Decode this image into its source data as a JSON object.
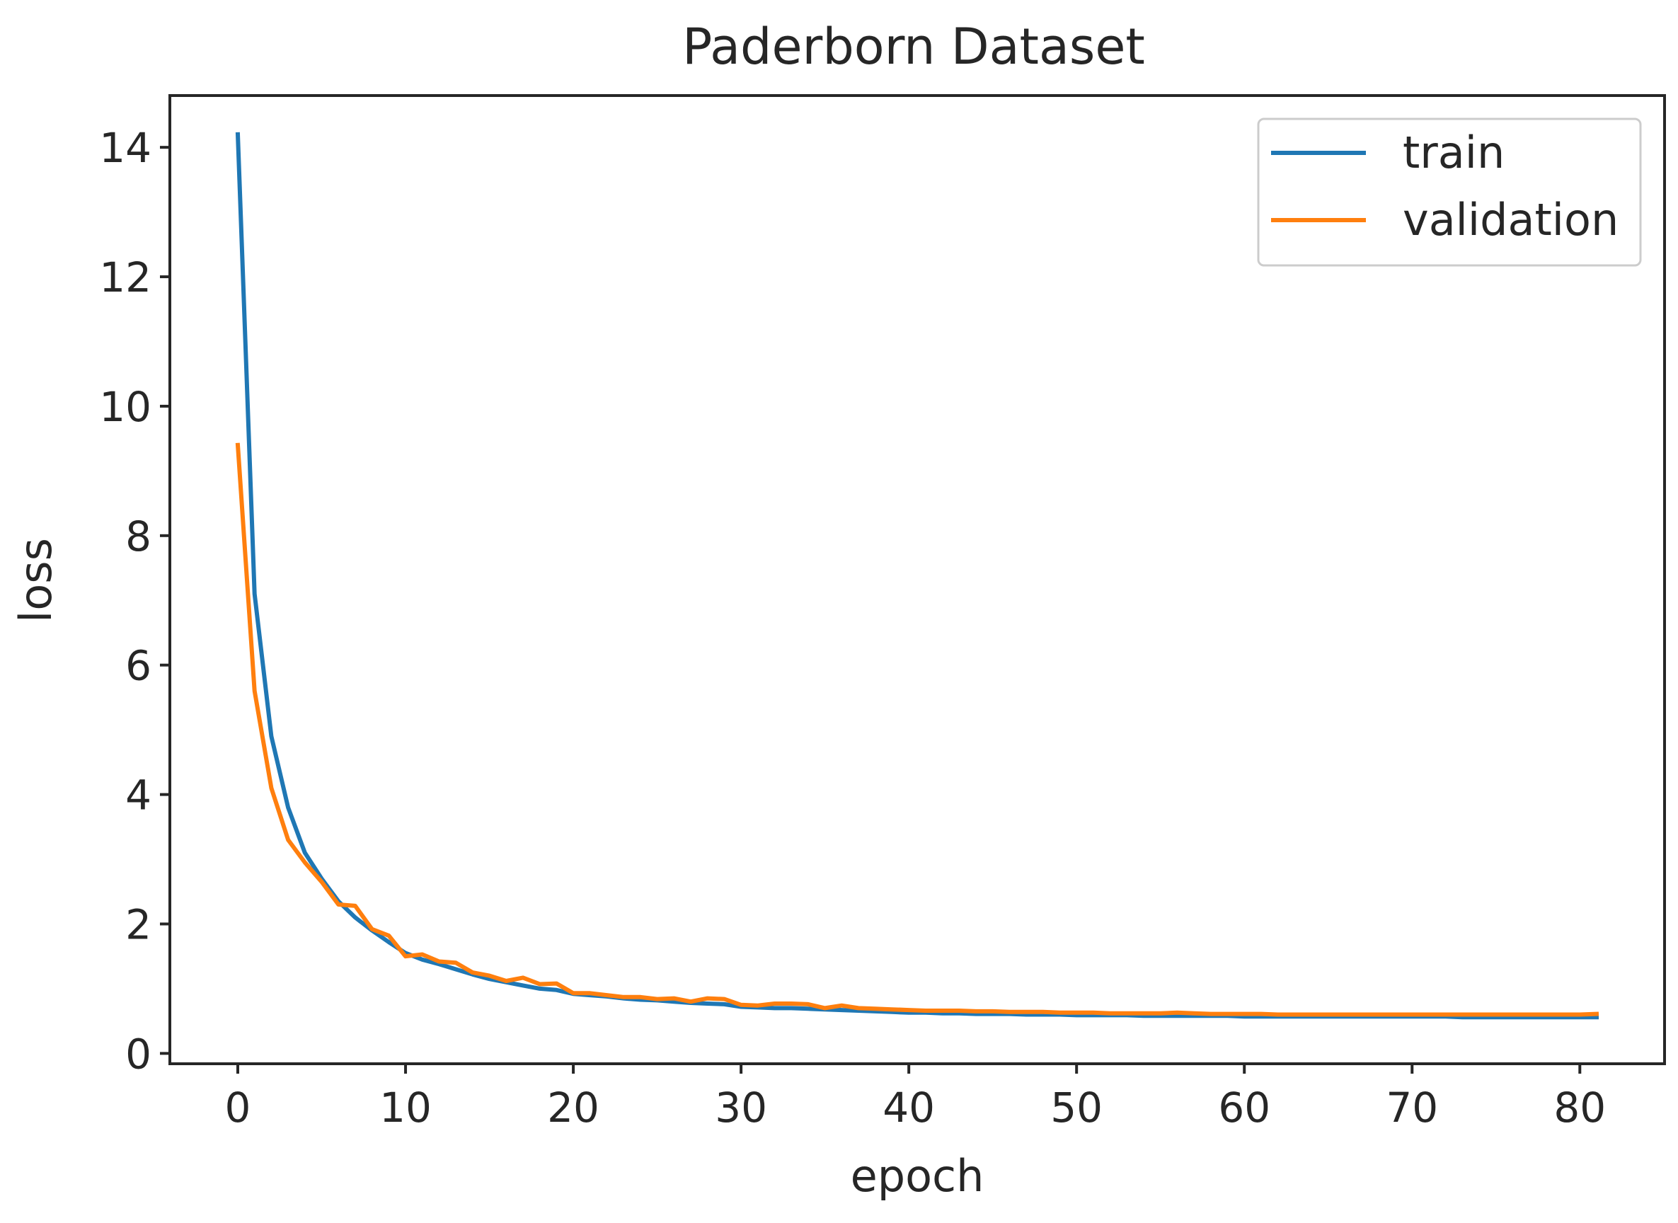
{
  "chart_data": {
    "type": "line",
    "title": "Paderborn Dataset",
    "xlabel": "epoch",
    "ylabel": "loss",
    "xlim": [
      -4.05,
      85.05
    ],
    "ylim": [
      -0.16,
      14.8
    ],
    "xticks": [
      0,
      10,
      20,
      30,
      40,
      50,
      60,
      70,
      80
    ],
    "yticks": [
      0,
      2,
      4,
      6,
      8,
      10,
      12,
      14
    ],
    "grid": false,
    "legend": "top-right",
    "x": [
      0,
      1,
      2,
      3,
      4,
      5,
      6,
      7,
      8,
      9,
      10,
      11,
      12,
      13,
      14,
      15,
      16,
      17,
      18,
      19,
      20,
      21,
      22,
      23,
      24,
      25,
      26,
      27,
      28,
      29,
      30,
      31,
      32,
      33,
      34,
      35,
      36,
      37,
      38,
      39,
      40,
      41,
      42,
      43,
      44,
      45,
      46,
      47,
      48,
      49,
      50,
      51,
      52,
      53,
      54,
      55,
      56,
      57,
      58,
      59,
      60,
      61,
      62,
      63,
      64,
      65,
      66,
      67,
      68,
      69,
      70,
      71,
      72,
      73,
      74,
      75,
      76,
      77,
      78,
      79,
      80,
      81
    ],
    "series": [
      {
        "name": "train",
        "color": "#1f77b4",
        "values": [
          14.2,
          7.1,
          4.9,
          3.8,
          3.1,
          2.7,
          2.35,
          2.1,
          1.9,
          1.72,
          1.55,
          1.45,
          1.38,
          1.3,
          1.22,
          1.15,
          1.1,
          1.05,
          1.0,
          0.98,
          0.92,
          0.9,
          0.88,
          0.85,
          0.83,
          0.82,
          0.8,
          0.78,
          0.77,
          0.76,
          0.72,
          0.71,
          0.7,
          0.7,
          0.69,
          0.68,
          0.67,
          0.66,
          0.65,
          0.64,
          0.63,
          0.63,
          0.62,
          0.62,
          0.61,
          0.61,
          0.61,
          0.6,
          0.6,
          0.6,
          0.59,
          0.59,
          0.59,
          0.59,
          0.58,
          0.58,
          0.58,
          0.58,
          0.58,
          0.58,
          0.57,
          0.57,
          0.57,
          0.57,
          0.57,
          0.57,
          0.57,
          0.57,
          0.57,
          0.57,
          0.57,
          0.57,
          0.57,
          0.56,
          0.56,
          0.56,
          0.56,
          0.56,
          0.56,
          0.56,
          0.56,
          0.56
        ]
      },
      {
        "name": "validation",
        "color": "#ff7f0e",
        "values": [
          9.4,
          5.6,
          4.1,
          3.3,
          2.95,
          2.65,
          2.3,
          2.28,
          1.92,
          1.82,
          1.5,
          1.53,
          1.42,
          1.4,
          1.25,
          1.2,
          1.12,
          1.17,
          1.07,
          1.08,
          0.93,
          0.93,
          0.9,
          0.87,
          0.87,
          0.84,
          0.85,
          0.8,
          0.85,
          0.84,
          0.75,
          0.74,
          0.77,
          0.77,
          0.76,
          0.7,
          0.74,
          0.7,
          0.69,
          0.68,
          0.67,
          0.66,
          0.66,
          0.66,
          0.65,
          0.65,
          0.64,
          0.64,
          0.64,
          0.63,
          0.63,
          0.63,
          0.62,
          0.62,
          0.62,
          0.62,
          0.63,
          0.62,
          0.61,
          0.61,
          0.61,
          0.61,
          0.6,
          0.6,
          0.6,
          0.6,
          0.6,
          0.6,
          0.6,
          0.6,
          0.6,
          0.6,
          0.6,
          0.6,
          0.6,
          0.6,
          0.6,
          0.6,
          0.6,
          0.6,
          0.6,
          0.61
        ]
      }
    ]
  }
}
